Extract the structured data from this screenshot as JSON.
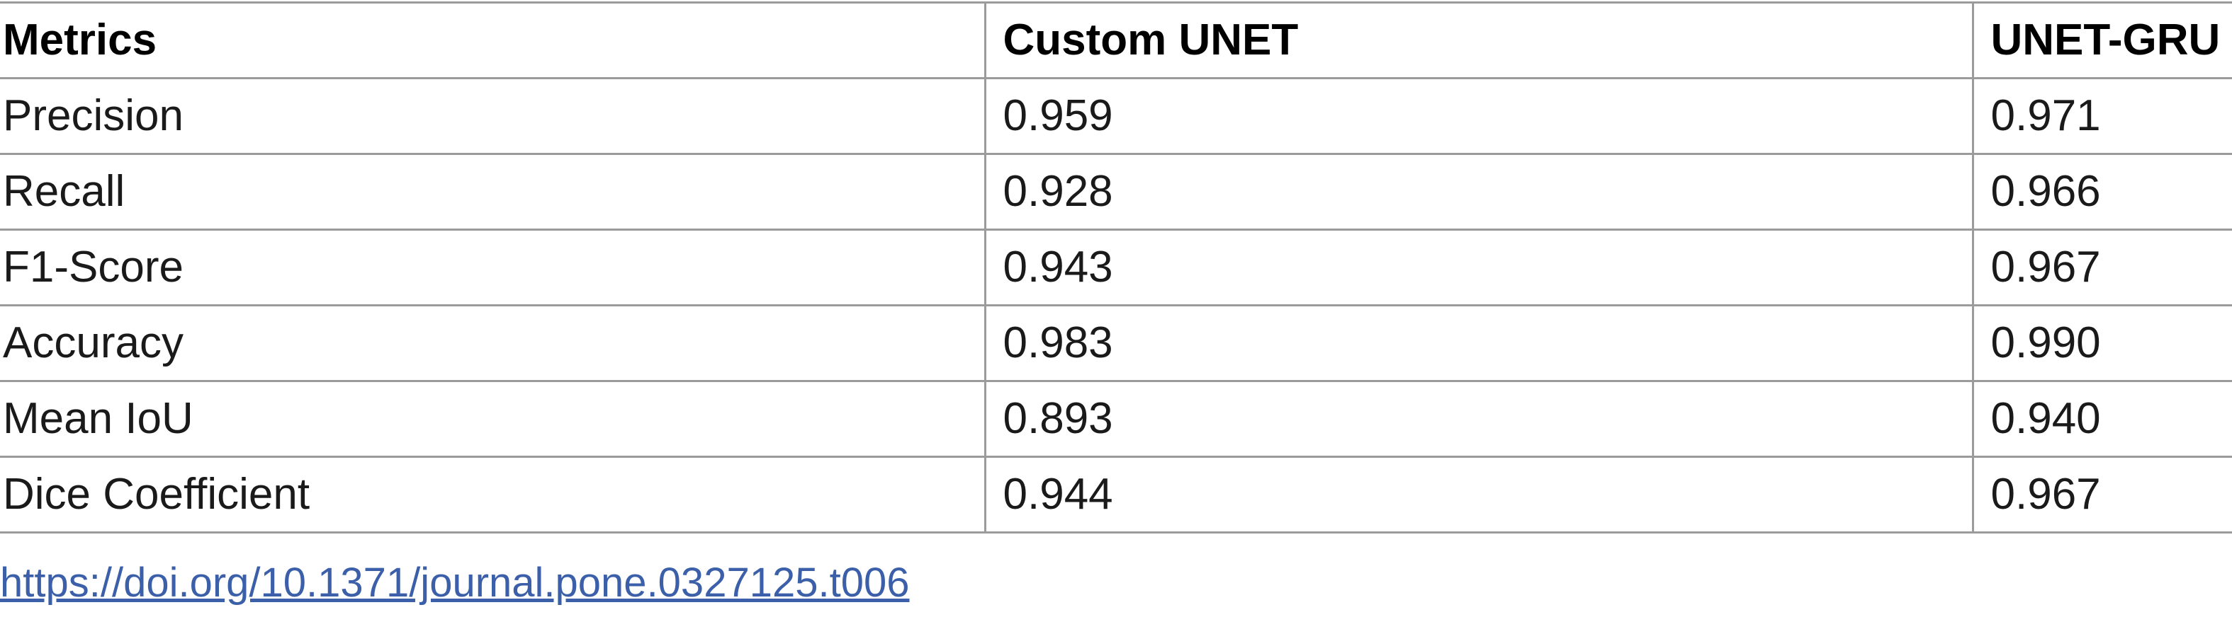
{
  "table": {
    "headers": [
      "Metrics",
      "Custom UNET",
      "UNET-GRU"
    ],
    "rows": [
      [
        "Precision",
        "0.959",
        "0.971"
      ],
      [
        "Recall",
        "0.928",
        "0.966"
      ],
      [
        "F1-Score",
        "0.943",
        "0.967"
      ],
      [
        "Accuracy",
        "0.983",
        "0.990"
      ],
      [
        "Mean IoU",
        "0.893",
        "0.940"
      ],
      [
        "Dice Coefficient",
        "0.944",
        "0.967"
      ]
    ]
  },
  "footer": {
    "doi_text": "https://doi.org/10.1371/journal.pone.0327125.t006"
  },
  "colors": {
    "grid_line": "#9b9b9b",
    "link": "#3b5fa8"
  }
}
